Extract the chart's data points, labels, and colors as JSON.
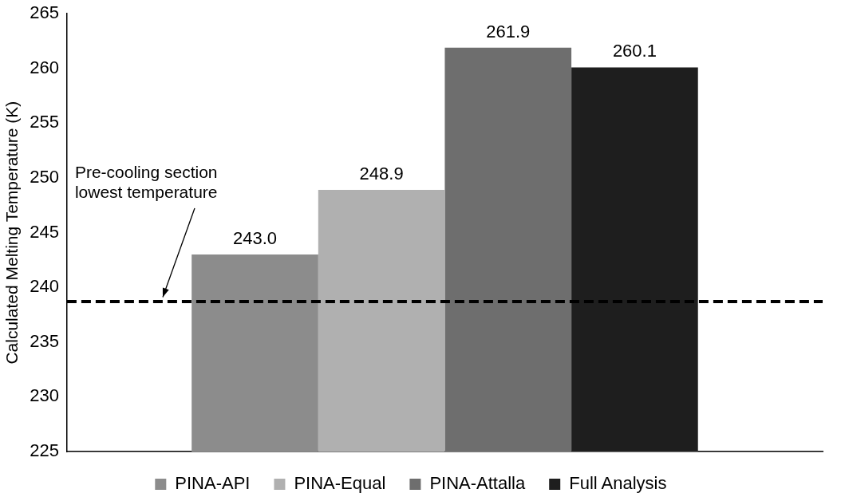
{
  "chart_data": {
    "type": "bar",
    "ylabel": "Calculated Melting Temperature (K)",
    "categories": [
      null
    ],
    "series": [
      {
        "name": "PINA-API",
        "color": "#8c8c8c",
        "values": [
          243.0
        ],
        "value_labels": [
          "243.0"
        ]
      },
      {
        "name": "PINA-Equal",
        "color": "#b0b0b0",
        "values": [
          248.9
        ],
        "value_labels": [
          "248.9"
        ]
      },
      {
        "name": "PINA-Attalla",
        "color": "#6e6e6e",
        "values": [
          261.9
        ],
        "value_labels": [
          "261.9"
        ]
      },
      {
        "name": "Full Analysis",
        "color": "#1e1e1e",
        "values": [
          260.1
        ],
        "value_labels": [
          "260.1"
        ]
      }
    ],
    "ylim": [
      225,
      265
    ],
    "yticks": [
      225,
      230,
      235,
      240,
      245,
      250,
      255,
      260,
      265
    ],
    "grid": false,
    "legend": "bottom",
    "ref_lines": [
      {
        "axis": "y",
        "value": 238.7,
        "label": "Pre-cooling section\nlowest temperature",
        "color": "#000000",
        "line_style": "dashed"
      }
    ]
  }
}
